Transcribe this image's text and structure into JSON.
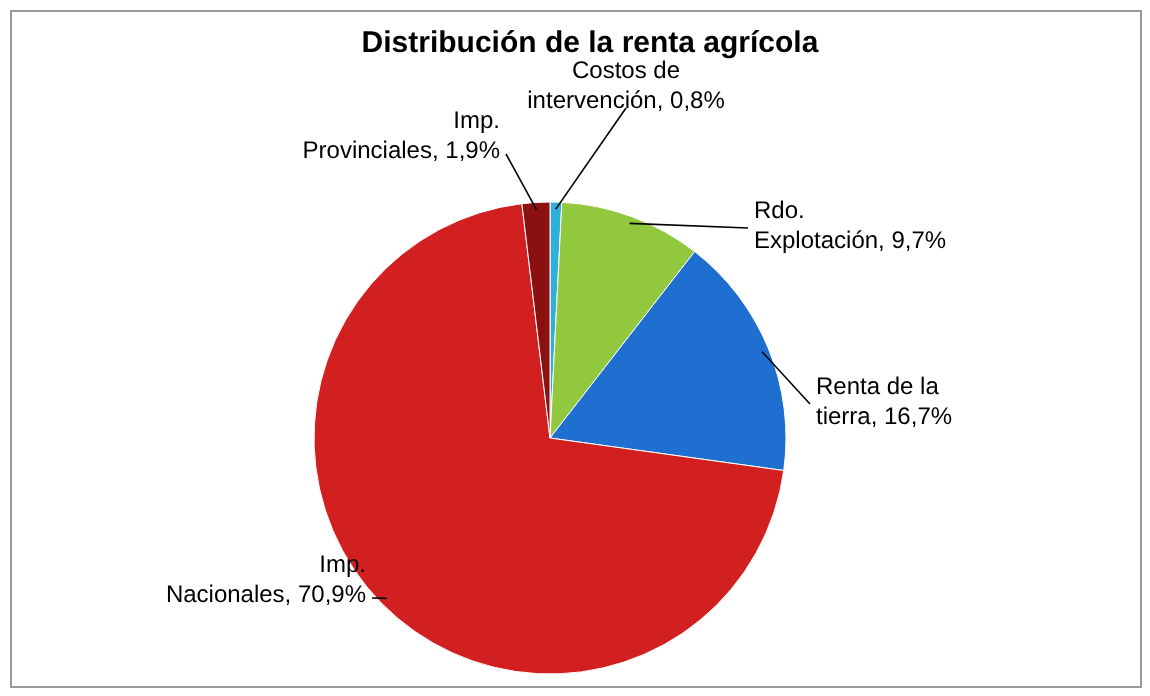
{
  "chart_data": {
    "type": "pie",
    "title": "Distribución de la renta agrícola",
    "categories": [
      "Costos de intervención",
      "Rdo. Explotación",
      "Renta de la tierra",
      "Imp. Nacionales",
      "Imp. Provinciales"
    ],
    "values": [
      0.8,
      9.7,
      16.7,
      70.9,
      1.9
    ],
    "value_labels": [
      "0,8%",
      "9,7%",
      "16,7%",
      "70,9%",
      "1,9%"
    ],
    "colors": [
      "#2fb0d8",
      "#92c83e",
      "#1f6fd0",
      "#d22020",
      "#8b1010"
    ]
  }
}
